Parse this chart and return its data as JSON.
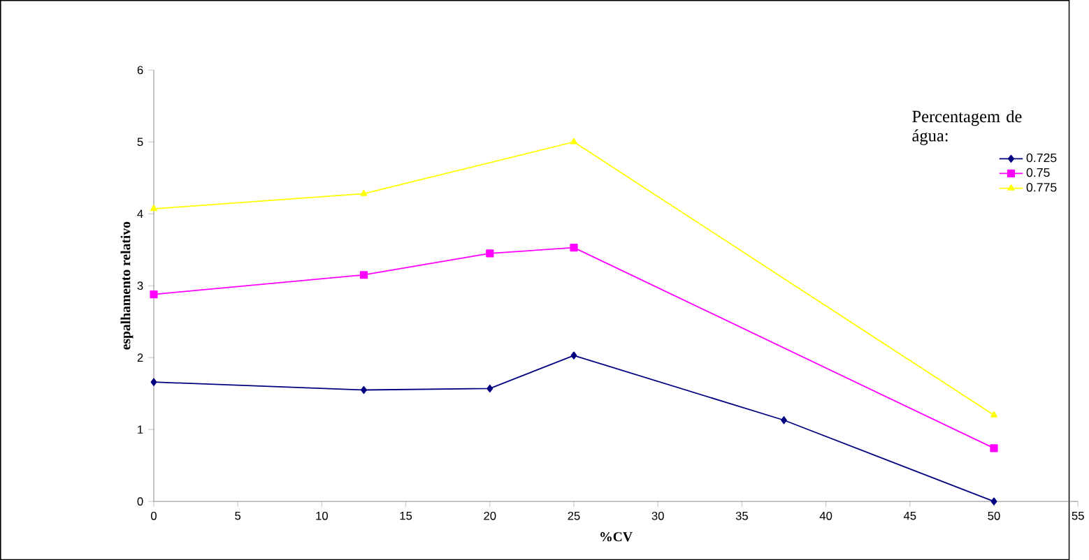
{
  "chart_data": {
    "type": "line",
    "xlabel": "%CV",
    "ylabel": "espalhamento relativo",
    "legend_title": "Percentagem de água:",
    "xlim": [
      0,
      55
    ],
    "xticks": [
      0,
      5,
      10,
      15,
      20,
      25,
      30,
      35,
      40,
      45,
      50,
      55
    ],
    "ylim": [
      0,
      6
    ],
    "yticks": [
      0,
      1,
      2,
      3,
      4,
      5,
      6
    ],
    "grid": false,
    "legend": "top right",
    "line_style": "solid",
    "series": [
      {
        "name": "0.725",
        "color": "#000080",
        "marker": "diamond",
        "x": [
          0,
          12.5,
          20,
          25,
          37.5,
          50
        ],
        "values": [
          1.66,
          1.55,
          1.57,
          2.03,
          1.13,
          0
        ]
      },
      {
        "name": "0.75",
        "color": "#ff00ff",
        "marker": "square",
        "x": [
          0,
          12.5,
          20,
          25,
          50
        ],
        "values": [
          2.88,
          3.15,
          3.45,
          3.53,
          0.74
        ]
      },
      {
        "name": "0.775",
        "color": "#ffff00",
        "marker": "triangle",
        "x": [
          0,
          12.5,
          25,
          50
        ],
        "values": [
          4.07,
          4.28,
          5.0,
          1.2
        ]
      }
    ]
  }
}
